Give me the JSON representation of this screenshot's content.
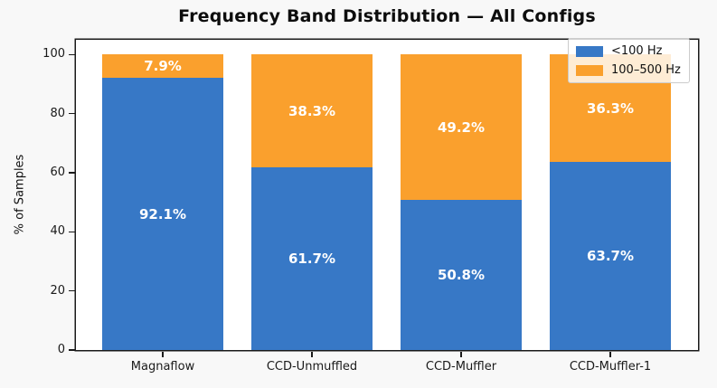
{
  "chart_data": {
    "type": "bar",
    "stacked": true,
    "title": "Frequency Band Distribution — All Configs",
    "xlabel": "",
    "ylabel": "% of Samples",
    "categories": [
      "Magnaflow",
      "CCD-Unmuffled",
      "CCD-Muffler",
      "CCD-Muffler-1"
    ],
    "series": [
      {
        "name": "<100 Hz",
        "color": "#3778c6",
        "values": [
          92.1,
          61.7,
          50.8,
          63.7
        ],
        "labels": [
          "92.1%",
          "61.7%",
          "50.8%",
          "63.7%"
        ]
      },
      {
        "name": "100–500 Hz",
        "color": "#faa02d",
        "values": [
          7.9,
          38.3,
          49.2,
          36.3
        ],
        "labels": [
          "7.9%",
          "38.3%",
          "49.2%",
          "36.3%"
        ]
      }
    ],
    "ylim": [
      0,
      105
    ],
    "yticks": [
      0,
      20,
      40,
      60,
      80,
      100
    ],
    "grid": false,
    "legend_position": "upper right"
  },
  "style": {
    "figure_bg": "#f8f8f8",
    "axes_bg": "#ffffff",
    "spine_color": "#1a1a1a",
    "tick_text_color": "#1a1a1a",
    "bar_label_color": "#ffffff",
    "legend_border_color": "#cccccc"
  }
}
